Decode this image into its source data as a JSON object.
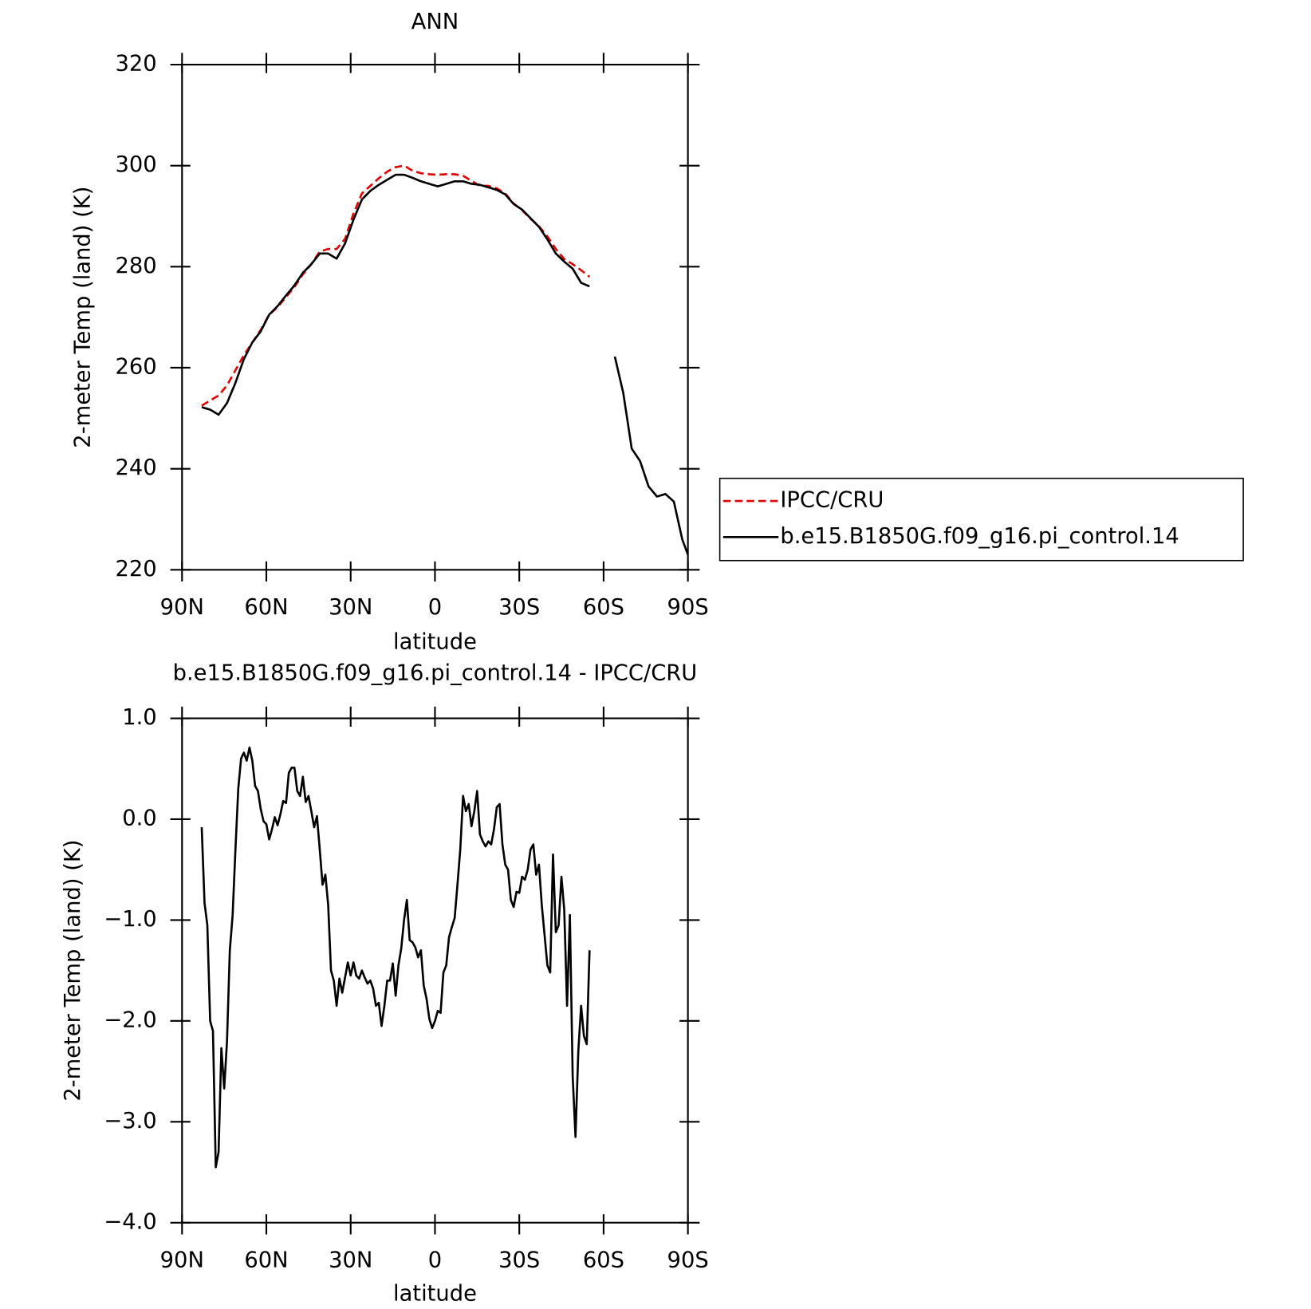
{
  "chart_data": [
    {
      "type": "line",
      "title": "ANN",
      "x_label": "latitude",
      "y_label": "2-meter Temp (land) (K)",
      "x": [
        83,
        80,
        77,
        74,
        71,
        68,
        65,
        62,
        59,
        56,
        53,
        50,
        47,
        44,
        41,
        38,
        35,
        32,
        29,
        26,
        23,
        20,
        17,
        14,
        11,
        8,
        5,
        2,
        -1,
        -4,
        -7,
        -10,
        -13,
        -16,
        -19,
        -22,
        -25,
        -28,
        -31,
        -34,
        -37,
        -40,
        -43,
        -46,
        -49,
        -52,
        -55,
        -58,
        -64,
        -67,
        -70,
        -73,
        -76,
        -79,
        -82,
        -85,
        -88,
        -90
      ],
      "xlim": [
        90,
        -90
      ],
      "xticks": [
        {
          "value": 90,
          "label": "90N"
        },
        {
          "value": 60,
          "label": "60N"
        },
        {
          "value": 30,
          "label": "30N"
        },
        0,
        {
          "value": -30,
          "label": "30S"
        },
        {
          "value": -60,
          "label": "60S"
        },
        {
          "value": -90,
          "label": "90S"
        }
      ],
      "ylim": [
        220,
        320
      ],
      "yticks": [
        220,
        240,
        260,
        280,
        300,
        320
      ],
      "legend": "outside right",
      "series": [
        {
          "name": "IPCC/CRU",
          "color": "#e00000",
          "line_style": "dashed",
          "values": [
            252.5,
            253.5,
            254.5,
            256.5,
            259.5,
            262.5,
            265,
            267.5,
            270.5,
            272,
            274,
            276,
            278.5,
            280.5,
            283,
            283.5,
            283.5,
            285.5,
            290.5,
            294.5,
            296,
            297.5,
            298.8,
            299.7,
            300,
            299,
            298.5,
            298.3,
            298.2,
            298.3,
            298.3,
            298,
            297,
            296,
            296,
            295.5,
            294.5,
            292.5,
            291.2,
            289.5,
            288,
            286,
            283.5,
            281.5,
            280.5,
            279.3,
            278,
            null,
            null,
            null,
            null,
            null,
            null,
            null,
            null,
            null,
            null,
            null
          ]
        },
        {
          "name": "b.e15.B1850G.f09_g16.pi_control.14",
          "color": "#000000",
          "line_style": "solid",
          "values": [
            252.2,
            251.7,
            250.7,
            253,
            257,
            261.7,
            265,
            267.2,
            270.5,
            272.2,
            274.3,
            276.3,
            278.8,
            280.5,
            282.6,
            282.6,
            281.6,
            284.6,
            289.3,
            293.3,
            295,
            296.2,
            297.2,
            298.2,
            298.2,
            297.6,
            296.9,
            296.4,
            295.9,
            296.4,
            296.9,
            296.9,
            296.4,
            296.2,
            295.7,
            295.2,
            294.3,
            292.4,
            291.3,
            289.6,
            287.9,
            285.4,
            282.6,
            281,
            279.6,
            276.8,
            276.1,
            null,
            262.2,
            255,
            244,
            241.5,
            236.5,
            234.5,
            235,
            233.5,
            226,
            223
          ]
        }
      ]
    },
    {
      "type": "line",
      "title": "b.e15.B1850G.f09_g16.pi_control.14 - IPCC/CRU",
      "x_label": "latitude",
      "y_label": "2-meter Temp (land) (K)",
      "x": [
        83,
        82,
        81,
        80,
        79,
        78,
        77,
        76,
        75,
        74,
        73,
        72,
        71,
        70,
        69,
        68,
        67,
        66,
        65,
        64,
        63,
        62,
        61,
        60,
        59,
        58,
        57,
        56,
        55,
        54,
        53,
        52,
        51,
        50,
        49,
        48,
        47,
        46,
        45,
        44,
        43,
        42,
        41,
        40,
        39,
        38,
        37,
        36,
        35,
        34,
        33,
        32,
        31,
        30,
        29,
        28,
        27,
        26,
        25,
        24,
        23,
        22,
        21,
        20,
        19,
        18,
        17,
        16,
        15,
        14,
        13,
        12,
        11,
        10,
        9,
        8,
        7,
        6,
        5,
        4,
        3,
        2,
        1,
        0,
        -1,
        -2,
        -3,
        -4,
        -5,
        -6,
        -7,
        -8,
        -9,
        -10,
        -11,
        -12,
        -13,
        -14,
        -15,
        -16,
        -17,
        -18,
        -19,
        -20,
        -21,
        -22,
        -23,
        -24,
        -25,
        -26,
        -27,
        -28,
        -29,
        -30,
        -31,
        -32,
        -33,
        -34,
        -35,
        -36,
        -37,
        -38,
        -39,
        -40,
        -41,
        -42,
        -43,
        -44,
        -45,
        -46,
        -47,
        -48,
        -49,
        -50,
        -51,
        -52,
        -53,
        -54,
        -55
      ],
      "xlim": [
        90,
        -90
      ],
      "xticks": [
        {
          "value": 90,
          "label": "90N"
        },
        {
          "value": 60,
          "label": "60N"
        },
        {
          "value": 30,
          "label": "30N"
        },
        0,
        {
          "value": -30,
          "label": "30S"
        },
        {
          "value": -60,
          "label": "60S"
        },
        {
          "value": -90,
          "label": "90S"
        }
      ],
      "ylim": [
        -4,
        1
      ],
      "yticks": [
        {
          "value": -4,
          "label": "−4.0"
        },
        {
          "value": -3,
          "label": "−3.0"
        },
        {
          "value": -2,
          "label": "−2.0"
        },
        {
          "value": -1,
          "label": "−1.0"
        },
        {
          "value": 0,
          "label": "0.0"
        },
        {
          "value": 1,
          "label": "1.0"
        }
      ],
      "color": "#000000",
      "values": [
        -0.08,
        -0.83,
        -1.05,
        -2.0,
        -2.1,
        -3.45,
        -3.3,
        -2.27,
        -2.67,
        -2.2,
        -1.3,
        -0.95,
        -0.3,
        0.3,
        0.6,
        0.66,
        0.58,
        0.71,
        0.58,
        0.33,
        0.28,
        0.1,
        -0.02,
        -0.05,
        -0.2,
        -0.1,
        0.02,
        -0.06,
        0.05,
        0.18,
        0.16,
        0.46,
        0.51,
        0.51,
        0.28,
        0.23,
        0.42,
        0.17,
        0.23,
        0.08,
        -0.08,
        0.03,
        -0.3,
        -0.65,
        -0.55,
        -0.85,
        -1.5,
        -1.6,
        -1.85,
        -1.58,
        -1.72,
        -1.57,
        -1.42,
        -1.55,
        -1.42,
        -1.55,
        -1.58,
        -1.5,
        -1.57,
        -1.63,
        -1.6,
        -1.68,
        -1.85,
        -1.82,
        -2.05,
        -1.85,
        -1.6,
        -1.6,
        -1.43,
        -1.75,
        -1.45,
        -1.28,
        -1.0,
        -0.8,
        -1.2,
        -1.22,
        -1.27,
        -1.37,
        -1.3,
        -1.65,
        -1.78,
        -1.98,
        -2.07,
        -2.0,
        -1.9,
        -1.92,
        -1.52,
        -1.45,
        -1.17,
        -1.07,
        -0.98,
        -0.65,
        -0.3,
        0.23,
        0.08,
        0.15,
        -0.07,
        0.08,
        0.28,
        -0.15,
        -0.22,
        -0.27,
        -0.22,
        -0.25,
        -0.1,
        0.12,
        0.15,
        -0.25,
        -0.45,
        -0.5,
        -0.8,
        -0.87,
        -0.72,
        -0.73,
        -0.57,
        -0.6,
        -0.5,
        -0.3,
        -0.25,
        -0.55,
        -0.45,
        -0.85,
        -1.15,
        -1.45,
        -1.52,
        -0.35,
        -1.12,
        -1.05,
        -0.57,
        -0.9,
        -1.85,
        -0.95,
        -2.55,
        -3.15,
        -2.3,
        -1.85,
        -2.15,
        -2.23,
        -1.3
      ]
    }
  ]
}
